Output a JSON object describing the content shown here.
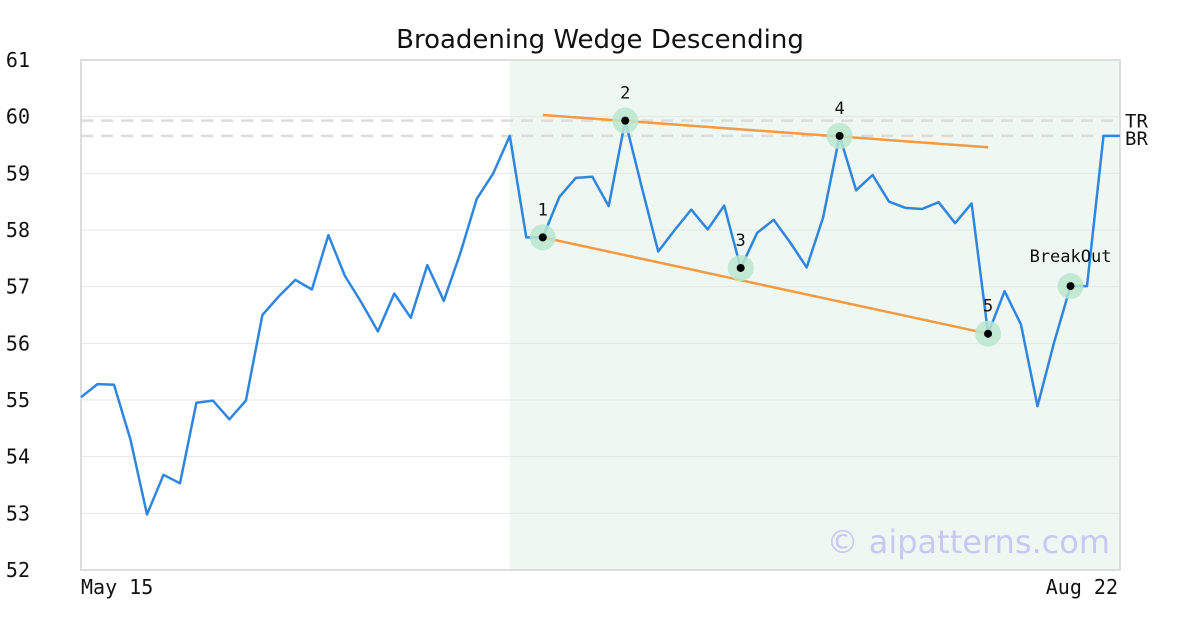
{
  "chart_data": {
    "type": "line",
    "title": "Broadening Wedge Descending",
    "ylim": [
      52,
      61
    ],
    "y_ticks": [
      "52",
      "53",
      "54",
      "55",
      "56",
      "57",
      "58",
      "59",
      "60",
      "61"
    ],
    "x_ticks": [
      "May 15",
      "Aug 22"
    ],
    "grid": true,
    "series": [
      {
        "color": "#2e86de",
        "values": [
          55.05,
          55.28,
          55.27,
          54.3,
          52.98,
          53.68,
          53.53,
          54.95,
          54.99,
          54.66,
          54.99,
          56.5,
          56.83,
          57.12,
          56.95,
          57.91,
          57.19,
          56.72,
          56.21,
          56.88,
          56.45,
          57.38,
          56.75,
          57.59,
          58.55,
          59.0,
          59.66,
          57.87,
          57.87,
          58.58,
          58.92,
          58.94,
          58.42,
          59.93,
          58.76,
          57.62,
          58.0,
          58.36,
          58.01,
          58.43,
          57.33,
          57.95,
          58.18,
          57.78,
          57.34,
          58.22,
          59.66,
          58.7,
          58.97,
          58.5,
          58.39,
          58.37,
          58.49,
          58.12,
          58.47,
          56.17,
          56.92,
          56.33,
          54.89,
          56.01,
          57.01,
          57.01,
          59.66,
          59.66
        ]
      }
    ],
    "pattern_region": {
      "start_index": 26,
      "end_index": 63,
      "color": "#eef7f2"
    },
    "pivots": [
      {
        "label": "1",
        "index": 28,
        "value": 57.87
      },
      {
        "label": "2",
        "index": 33,
        "value": 59.93
      },
      {
        "label": "3",
        "index": 40,
        "value": 57.33
      },
      {
        "label": "4",
        "index": 46,
        "value": 59.66
      },
      {
        "label": "5",
        "index": 55,
        "value": 56.17
      },
      {
        "label": "BreakOut",
        "index": 60,
        "value": 57.01
      }
    ],
    "trend_lines": [
      {
        "name": "upper",
        "start": {
          "index": 28,
          "value": 60.03
        },
        "end": {
          "index": 55,
          "value": 59.46
        },
        "color": "#f59a42"
      },
      {
        "name": "lower",
        "start": {
          "index": 28,
          "value": 57.87
        },
        "end": {
          "index": 55,
          "value": 56.17
        },
        "color": "#f59a42"
      }
    ],
    "reference_lines": [
      {
        "label": "TR",
        "value": 59.93
      },
      {
        "label": "BR",
        "value": 59.66
      }
    ],
    "watermark": "© aipatterns.com"
  }
}
